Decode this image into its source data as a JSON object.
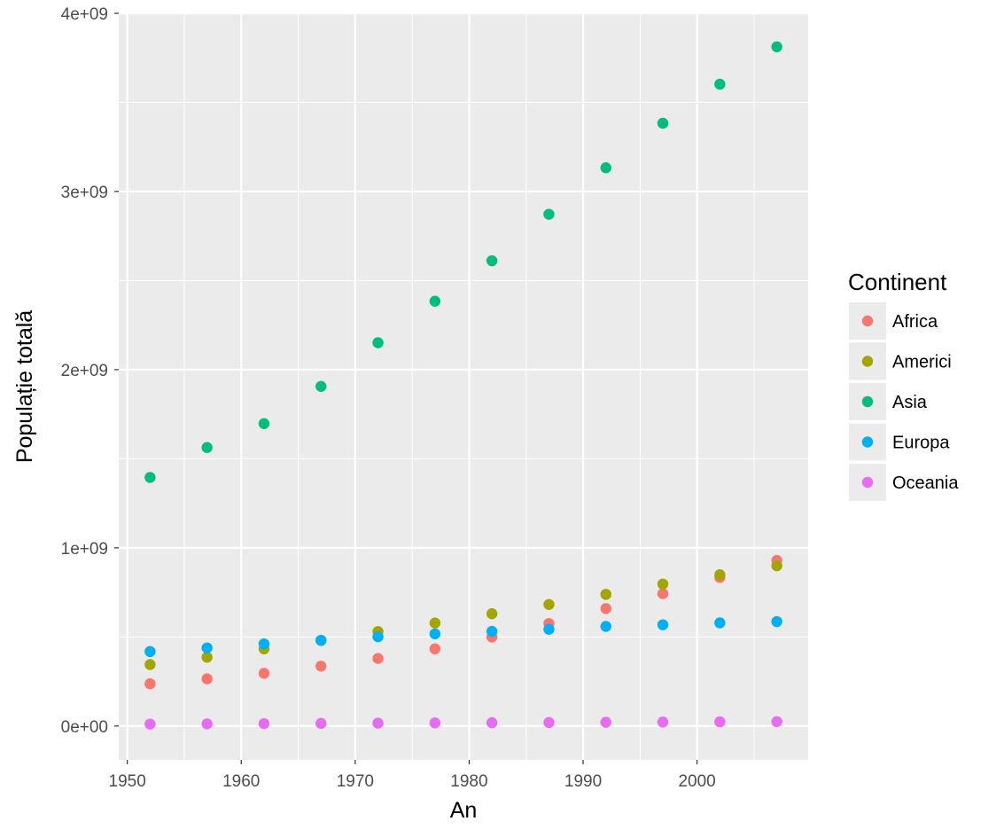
{
  "chart_data": {
    "type": "scatter",
    "title": "",
    "xlabel": "An",
    "ylabel": "Populație totală",
    "xlim": [
      1949.25,
      2009.75
    ],
    "ylim": [
      -190000000,
      4000000000
    ],
    "x_ticks": [
      1950,
      1960,
      1970,
      1980,
      1990,
      2000
    ],
    "x_tick_labels": [
      "1950",
      "1960",
      "1970",
      "1980",
      "1990",
      "2000"
    ],
    "y_ticks": [
      0,
      1000000000,
      2000000000,
      3000000000,
      4000000000
    ],
    "y_tick_labels": [
      "0e+00",
      "1e+09",
      "2e+09",
      "3e+09",
      "4e+09"
    ],
    "grid": true,
    "legend": {
      "title": "Continent",
      "position": "right"
    },
    "x": [
      1952,
      1957,
      1962,
      1967,
      1972,
      1977,
      1982,
      1987,
      1992,
      1997,
      2002,
      2007
    ],
    "series": [
      {
        "name": "Africa",
        "color": "#F8766D",
        "values": [
          237000000,
          265000000,
          296000000,
          336000000,
          379000000,
          433000000,
          499000000,
          575000000,
          659000000,
          743000000,
          834000000,
          929000000
        ]
      },
      {
        "name": "Americi",
        "color": "#A3A500",
        "values": [
          345000000,
          386000000,
          433000000,
          480000000,
          530000000,
          578000000,
          630000000,
          682000000,
          739000000,
          797000000,
          849000000,
          899000000
        ]
      },
      {
        "name": "Asia",
        "color": "#00BF7D",
        "values": [
          1395000000,
          1563000000,
          1697000000,
          1906000000,
          2151000000,
          2384000000,
          2611000000,
          2872000000,
          3133000000,
          3383000000,
          3602000000,
          3812000000
        ]
      },
      {
        "name": "Europa",
        "color": "#00B0F6",
        "values": [
          418000000,
          438000000,
          461000000,
          481000000,
          501000000,
          517000000,
          531000000,
          543000000,
          559000000,
          568000000,
          579000000,
          586000000
        ]
      },
      {
        "name": "Oceania",
        "color": "#E76BF3",
        "values": [
          10700000,
          11900000,
          13300000,
          14600000,
          16100000,
          17200000,
          18400000,
          19500000,
          20900000,
          22200000,
          23500000,
          24500000
        ]
      }
    ]
  }
}
